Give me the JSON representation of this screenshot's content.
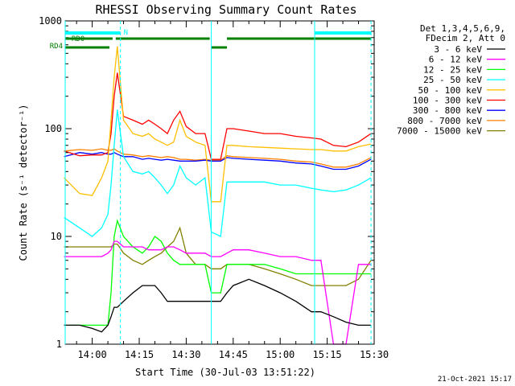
{
  "chart_data": {
    "type": "line",
    "title": "RHESSI Observing Summary Count Rates",
    "xlabel": "Start Time (30-Jul-03 13:51:22)",
    "ylabel": "Count Rate (s⁻¹ detector⁻¹)",
    "yscale": "log",
    "ylim": [
      1,
      1000
    ],
    "xlim": [
      "13:51:22",
      "15:30:00"
    ],
    "x_ticks": [
      "14:00",
      "14:15",
      "14:30",
      "14:45",
      "15:00",
      "15:15",
      "15:30"
    ],
    "y_ticks": [
      "1",
      "10",
      "100",
      "1000"
    ],
    "legend_header": [
      "Det 1,3,4,5,6,9,",
      "FDecim 2, Att 0"
    ],
    "legend_position": "right",
    "footer_date": "21-Oct-2021 15:17",
    "flags": {
      "rd0_label": "RD0",
      "rd4_label": "RD4",
      "n_label": "N",
      "saa_intervals": [
        [
          "13:51:22",
          "14:09:00"
        ],
        [
          "15:11:00",
          "15:29:00"
        ]
      ],
      "rd0_intervals": [
        [
          "13:51:22",
          "14:06:30"
        ],
        [
          "14:07:30",
          "14:37:30"
        ],
        [
          "14:43:00",
          "15:29:00"
        ]
      ],
      "rd4_intervals": [
        [
          "13:51:22",
          "14:05:30"
        ],
        [
          "14:38:00",
          "14:43:00"
        ]
      ]
    },
    "vertical_markers": {
      "solid": [
        "13:51:22",
        "14:38:00",
        "15:11:00"
      ],
      "dashed": [
        "14:09:00",
        "15:29:00"
      ]
    },
    "x_times": [
      "13:51",
      "13:56",
      "14:00",
      "14:03",
      "14:05",
      "14:06",
      "14:07",
      "14:08",
      "14:10",
      "14:13",
      "14:16",
      "14:18",
      "14:20",
      "14:22",
      "14:24",
      "14:26",
      "14:28",
      "14:30",
      "14:33",
      "14:36",
      "14:38",
      "14:41",
      "14:43",
      "14:45",
      "14:50",
      "14:55",
      "15:00",
      "15:05",
      "15:10",
      "15:13",
      "15:17",
      "15:21",
      "15:25",
      "15:29"
    ],
    "series": [
      {
        "name": "3 - 6 keV",
        "color": "#000000",
        "values": [
          1.5,
          1.5,
          1.4,
          1.3,
          1.5,
          1.8,
          2.2,
          2.2,
          2.5,
          3,
          3.5,
          3.5,
          3.5,
          3,
          2.5,
          2.5,
          2.5,
          2.5,
          2.5,
          2.5,
          2.5,
          2.5,
          3,
          3.5,
          4,
          3.5,
          3,
          2.5,
          2,
          2,
          1.8,
          1.6,
          1.5,
          1.5
        ]
      },
      {
        "name": "6 - 12 keV",
        "color": "#ff00ff",
        "values": [
          6.5,
          6.5,
          6.5,
          6.5,
          7,
          7.5,
          9,
          9,
          8,
          8,
          8,
          7.5,
          7.5,
          7.5,
          8,
          8,
          7.5,
          7,
          7,
          7,
          6.5,
          6.5,
          7,
          7.5,
          7.5,
          7,
          6.5,
          6.5,
          6,
          6,
          1,
          1,
          5.5,
          5.5
        ]
      },
      {
        "name": "12 - 25 keV",
        "color": "#00ff00",
        "values": [
          1.5,
          1.5,
          1.5,
          1.5,
          1.5,
          3,
          10,
          14,
          10,
          8,
          7,
          8,
          10,
          9,
          7,
          6,
          5.5,
          5.5,
          5.5,
          5.5,
          3,
          3,
          5.5,
          5.5,
          5.5,
          5.5,
          5,
          4.5,
          4.5,
          4.5,
          4.5,
          4.5,
          4.5,
          4.5
        ]
      },
      {
        "name": "25 - 50 keV",
        "color": "#00ffff",
        "values": [
          15,
          12,
          10,
          12,
          16,
          30,
          70,
          150,
          55,
          40,
          38,
          40,
          35,
          30,
          25,
          30,
          45,
          35,
          30,
          35,
          11,
          10,
          32,
          32,
          32,
          32,
          30,
          30,
          28,
          27,
          26,
          27,
          30,
          35
        ]
      },
      {
        "name": "50 - 100 keV",
        "color": "#ffbf00",
        "values": [
          35,
          25,
          24,
          35,
          50,
          120,
          300,
          580,
          120,
          90,
          85,
          90,
          80,
          75,
          70,
          75,
          120,
          85,
          75,
          70,
          21,
          21,
          70,
          70,
          68,
          67,
          66,
          65,
          64,
          64,
          62,
          62,
          68,
          72
        ]
      },
      {
        "name": "100 - 300 keV",
        "color": "#ff0000",
        "values": [
          62,
          56,
          57,
          57,
          60,
          90,
          200,
          330,
          130,
          120,
          110,
          120,
          110,
          100,
          90,
          120,
          145,
          105,
          90,
          90,
          52,
          52,
          100,
          100,
          95,
          90,
          90,
          85,
          82,
          80,
          70,
          68,
          75,
          90
        ]
      },
      {
        "name": "300 - 800 keV",
        "color": "#0000ff",
        "values": [
          55,
          60,
          58,
          60,
          58,
          58,
          60,
          58,
          55,
          55,
          52,
          53,
          52,
          51,
          52,
          51,
          50,
          50,
          50,
          51,
          50,
          50,
          54,
          53,
          52,
          51,
          50,
          48,
          47,
          45,
          42,
          42,
          45,
          52
        ]
      },
      {
        "name": "800 - 7000 keV",
        "color": "#ff8000",
        "values": [
          62,
          64,
          63,
          65,
          63,
          63,
          65,
          62,
          58,
          57,
          55,
          56,
          55,
          54,
          55,
          54,
          52,
          52,
          51,
          52,
          51,
          51,
          56,
          55,
          54,
          53,
          52,
          50,
          49,
          47,
          44,
          44,
          47,
          54
        ]
      },
      {
        "name": "7000 - 15000 keV",
        "color": "#808000",
        "values": [
          8,
          8,
          8,
          8,
          8,
          8,
          8.5,
          8.5,
          7,
          6,
          5.5,
          6,
          6.5,
          7,
          8,
          9,
          12,
          7,
          5.5,
          5.5,
          5,
          5,
          5.5,
          5.5,
          5.5,
          5,
          4.5,
          4,
          3.5,
          3.5,
          3.5,
          3.5,
          4,
          6
        ]
      }
    ]
  }
}
